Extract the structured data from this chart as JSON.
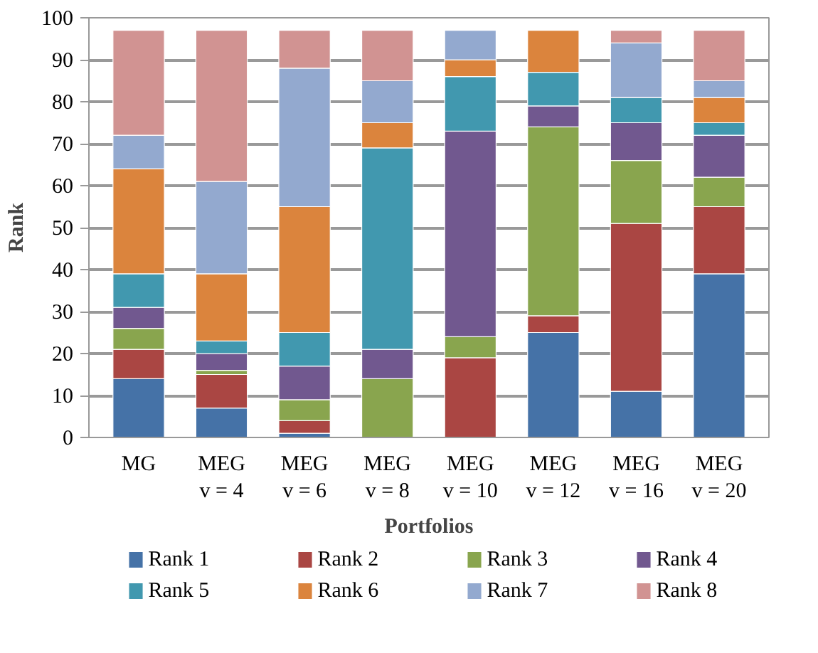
{
  "chart_data": {
    "type": "bar",
    "stacked": true,
    "xlabel": "Portfolios",
    "ylabel": "Rank",
    "categories": [
      "MG",
      "MEG\nv = 4",
      "MEG\nv = 6",
      "MEG\nv = 8",
      "MEG\nv = 10",
      "MEG\nv = 12",
      "MEG\nv = 16",
      "MEG\nv = 20"
    ],
    "ylim": [
      0,
      100
    ],
    "yticks": [
      0,
      10,
      20,
      30,
      40,
      50,
      60,
      70,
      80,
      90,
      100
    ],
    "grid": "y",
    "legend": "bottom",
    "series": [
      {
        "name": "Rank 1",
        "color": "#4572a7",
        "values": [
          14,
          7,
          1,
          0,
          0,
          25,
          11,
          39
        ]
      },
      {
        "name": "Rank 2",
        "color": "#aa4643",
        "values": [
          7,
          8,
          3,
          0,
          19,
          4,
          40,
          16
        ]
      },
      {
        "name": "Rank 3",
        "color": "#89a54e",
        "values": [
          5,
          1,
          5,
          14,
          5,
          45,
          15,
          7
        ]
      },
      {
        "name": "Rank 4",
        "color": "#71588f",
        "values": [
          5,
          4,
          8,
          7,
          49,
          5,
          9,
          10
        ]
      },
      {
        "name": "Rank 5",
        "color": "#4198af",
        "values": [
          8,
          3,
          8,
          48,
          13,
          8,
          6,
          3
        ]
      },
      {
        "name": "Rank 6",
        "color": "#db843d",
        "values": [
          25,
          16,
          30,
          6,
          4,
          10,
          0,
          6
        ]
      },
      {
        "name": "Rank 7",
        "color": "#93a9cf",
        "values": [
          8,
          22,
          33,
          10,
          7,
          0,
          13,
          4
        ]
      },
      {
        "name": "Rank 8",
        "color": "#d19392",
        "values": [
          25,
          36,
          9,
          12,
          0,
          0,
          3,
          12
        ]
      }
    ]
  }
}
